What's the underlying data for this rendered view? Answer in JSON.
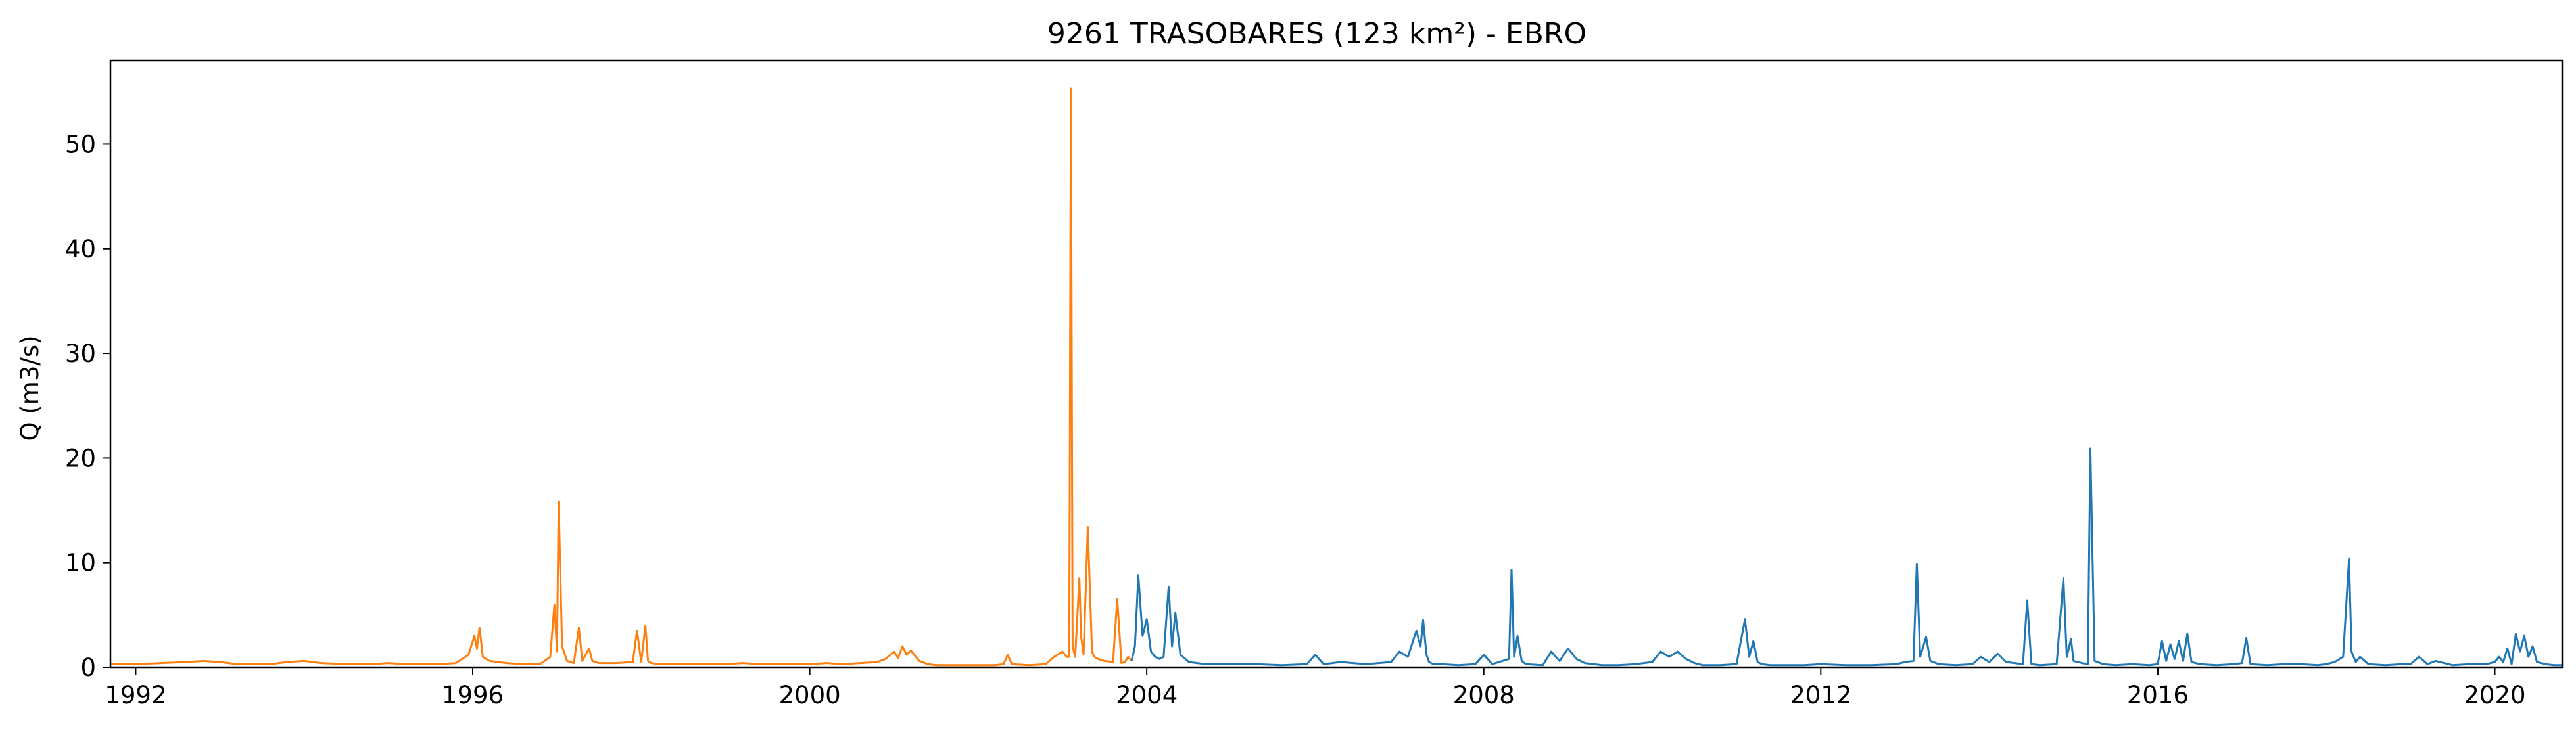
{
  "chart_data": {
    "type": "line",
    "title": "9261 TRASOBARES (123 km²) - EBRO",
    "xlabel": "",
    "ylabel": "Q (m3/s)",
    "xlim": [
      1991.7,
      2020.8
    ],
    "ylim": [
      0,
      58
    ],
    "xticks": [
      1992,
      1996,
      2000,
      2004,
      2008,
      2012,
      2016,
      2020
    ],
    "xtick_labels": [
      "1992",
      "1996",
      "2000",
      "2004",
      "2008",
      "2012",
      "2016",
      "2020"
    ],
    "yticks": [
      0,
      10,
      20,
      30,
      40,
      50
    ],
    "ytick_labels": [
      "0",
      "10",
      "20",
      "30",
      "40",
      "50"
    ],
    "grid": false,
    "legend": "none",
    "series": [
      {
        "color": "#ff7f0e",
        "x": [
          1991.7,
          1992.0,
          1992.3,
          1992.6,
          1992.8,
          1993.0,
          1993.2,
          1993.4,
          1993.6,
          1993.8,
          1994.0,
          1994.2,
          1994.5,
          1994.8,
          1995.0,
          1995.2,
          1995.4,
          1995.6,
          1995.8,
          1995.95,
          1996.02,
          1996.05,
          1996.08,
          1996.12,
          1996.2,
          1996.3,
          1996.4,
          1996.6,
          1996.8,
          1996.92,
          1996.97,
          1997.0,
          1997.02,
          1997.06,
          1997.12,
          1997.2,
          1997.26,
          1997.3,
          1997.38,
          1997.42,
          1997.5,
          1997.7,
          1997.9,
          1997.95,
          1998.0,
          1998.05,
          1998.08,
          1998.12,
          1998.2,
          1998.4,
          1998.6,
          1998.8,
          1999.0,
          1999.2,
          1999.4,
          1999.6,
          1999.8,
          2000.0,
          2000.2,
          2000.4,
          2000.6,
          2000.8,
          2000.9,
          2001.0,
          2001.05,
          2001.1,
          2001.15,
          2001.2,
          2001.3,
          2001.4,
          2001.5,
          2001.7,
          2002.0,
          2002.2,
          2002.3,
          2002.35,
          2002.4,
          2002.6,
          2002.8,
          2002.9,
          2003.0,
          2003.05,
          2003.08,
          2003.1,
          2003.12,
          2003.15,
          2003.2,
          2003.22,
          2003.25,
          2003.3,
          2003.35,
          2003.38,
          2003.42,
          2003.5,
          2003.6,
          2003.65,
          2003.7,
          2003.74,
          2003.78,
          2003.82
        ],
        "y": [
          0.3,
          0.3,
          0.4,
          0.5,
          0.6,
          0.5,
          0.3,
          0.3,
          0.3,
          0.5,
          0.6,
          0.4,
          0.3,
          0.3,
          0.4,
          0.3,
          0.3,
          0.3,
          0.4,
          1.2,
          3.0,
          1.8,
          3.8,
          1.0,
          0.6,
          0.5,
          0.4,
          0.3,
          0.3,
          1.0,
          6.0,
          1.5,
          15.8,
          2.0,
          0.6,
          0.4,
          3.8,
          0.6,
          1.8,
          0.6,
          0.4,
          0.4,
          0.5,
          3.5,
          0.5,
          4.0,
          0.6,
          0.4,
          0.3,
          0.3,
          0.3,
          0.3,
          0.3,
          0.4,
          0.3,
          0.3,
          0.3,
          0.3,
          0.4,
          0.3,
          0.4,
          0.5,
          0.8,
          1.5,
          0.9,
          2.0,
          1.2,
          1.6,
          0.6,
          0.3,
          0.2,
          0.2,
          0.2,
          0.2,
          0.3,
          1.2,
          0.3,
          0.2,
          0.3,
          1.0,
          1.5,
          1.0,
          1.0,
          55.3,
          2.0,
          1.0,
          8.5,
          3.0,
          1.2,
          13.4,
          1.5,
          1.0,
          0.8,
          0.6,
          0.5,
          6.5,
          0.4,
          0.5,
          1.0,
          0.6
        ]
      },
      {
        "color": "#1f77b4",
        "x": [
          2003.82,
          2003.86,
          2003.9,
          2003.95,
          2004.0,
          2004.05,
          2004.1,
          2004.15,
          2004.2,
          2004.26,
          2004.3,
          2004.34,
          2004.4,
          2004.5,
          2004.7,
          2005.0,
          2005.3,
          2005.6,
          2005.9,
          2006.0,
          2006.1,
          2006.3,
          2006.6,
          2006.9,
          2007.0,
          2007.1,
          2007.2,
          2007.25,
          2007.28,
          2007.32,
          2007.35,
          2007.4,
          2007.5,
          2007.7,
          2007.9,
          2008.0,
          2008.1,
          2008.3,
          2008.33,
          2008.36,
          2008.4,
          2008.45,
          2008.5,
          2008.7,
          2008.8,
          2008.9,
          2009.0,
          2009.1,
          2009.2,
          2009.4,
          2009.6,
          2009.8,
          2010.0,
          2010.1,
          2010.2,
          2010.3,
          2010.4,
          2010.5,
          2010.6,
          2010.8,
          2011.0,
          2011.1,
          2011.15,
          2011.2,
          2011.25,
          2011.3,
          2011.4,
          2011.6,
          2011.8,
          2012.0,
          2012.3,
          2012.6,
          2012.9,
          2013.0,
          2013.1,
          2013.14,
          2013.18,
          2013.25,
          2013.3,
          2013.4,
          2013.6,
          2013.8,
          2013.9,
          2014.0,
          2014.1,
          2014.2,
          2014.4,
          2014.45,
          2014.5,
          2014.6,
          2014.8,
          2014.88,
          2014.92,
          2014.97,
          2015.0,
          2015.1,
          2015.17,
          2015.2,
          2015.25,
          2015.35,
          2015.5,
          2015.7,
          2015.9,
          2016.0,
          2016.05,
          2016.1,
          2016.15,
          2016.2,
          2016.25,
          2016.3,
          2016.35,
          2016.4,
          2016.5,
          2016.7,
          2016.9,
          2017.0,
          2017.05,
          2017.1,
          2017.3,
          2017.5,
          2017.7,
          2017.9,
          2018.0,
          2018.1,
          2018.2,
          2018.27,
          2018.3,
          2018.35,
          2018.4,
          2018.5,
          2018.7,
          2018.9,
          2019.0,
          2019.1,
          2019.2,
          2019.3,
          2019.5,
          2019.7,
          2019.9,
          2020.0,
          2020.05,
          2020.1,
          2020.15,
          2020.2,
          2020.25,
          2020.3,
          2020.35,
          2020.4,
          2020.45,
          2020.5,
          2020.6,
          2020.7,
          2020.8
        ],
        "y": [
          0.6,
          2.0,
          8.8,
          3.0,
          4.6,
          1.5,
          1.0,
          0.8,
          1.0,
          7.7,
          2.0,
          5.2,
          1.2,
          0.5,
          0.3,
          0.3,
          0.3,
          0.2,
          0.3,
          1.2,
          0.3,
          0.5,
          0.3,
          0.5,
          1.5,
          1.0,
          3.5,
          2.0,
          4.5,
          1.2,
          0.5,
          0.3,
          0.3,
          0.2,
          0.3,
          1.2,
          0.3,
          0.8,
          9.3,
          1.0,
          3.0,
          0.6,
          0.3,
          0.2,
          1.5,
          0.6,
          1.8,
          0.8,
          0.4,
          0.2,
          0.2,
          0.3,
          0.5,
          1.5,
          1.0,
          1.5,
          0.8,
          0.4,
          0.2,
          0.2,
          0.3,
          4.6,
          1.0,
          2.5,
          0.5,
          0.3,
          0.2,
          0.2,
          0.2,
          0.3,
          0.2,
          0.2,
          0.3,
          0.5,
          0.6,
          9.9,
          1.0,
          2.9,
          0.6,
          0.3,
          0.2,
          0.3,
          1.0,
          0.5,
          1.3,
          0.5,
          0.3,
          6.4,
          0.3,
          0.2,
          0.3,
          8.5,
          1.0,
          2.7,
          0.6,
          0.4,
          0.3,
          20.9,
          0.6,
          0.3,
          0.2,
          0.3,
          0.2,
          0.3,
          2.5,
          0.6,
          2.2,
          0.8,
          2.5,
          0.6,
          3.2,
          0.5,
          0.3,
          0.2,
          0.3,
          0.4,
          2.8,
          0.3,
          0.2,
          0.3,
          0.3,
          0.2,
          0.3,
          0.5,
          1.0,
          10.4,
          1.5,
          0.5,
          1.0,
          0.3,
          0.2,
          0.3,
          0.3,
          1.0,
          0.3,
          0.6,
          0.2,
          0.3,
          0.3,
          0.5,
          1.0,
          0.5,
          1.8,
          0.3,
          3.2,
          1.5,
          3.0,
          1.0,
          2.0,
          0.5,
          0.3,
          0.2,
          0.2
        ]
      }
    ]
  }
}
